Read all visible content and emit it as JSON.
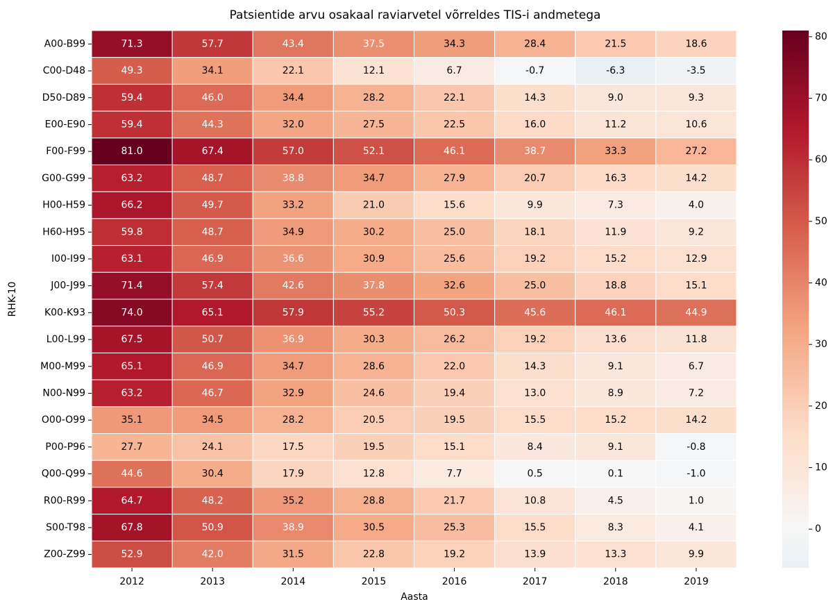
{
  "chart_data": {
    "type": "heatmap",
    "title": "Patsientide arvu osakaal raviarvetel võrreldes TIS-i andmetega",
    "x_label": "Aasta",
    "y_label": "RHK-10",
    "x_categories": [
      "2012",
      "2013",
      "2014",
      "2015",
      "2016",
      "2017",
      "2018",
      "2019"
    ],
    "y_categories": [
      "A00-B99",
      "C00-D48",
      "D50-D89",
      "E00-E90",
      "F00-F99",
      "G00-G99",
      "H00-H59",
      "H60-H95",
      "I00-I99",
      "J00-J99",
      "K00-K93",
      "L00-L99",
      "M00-M99",
      "N00-N99",
      "O00-O99",
      "P00-P96",
      "Q00-Q99",
      "R00-R99",
      "S00-T98",
      "Z00-Z99"
    ],
    "values": [
      [
        71.3,
        57.7,
        43.4,
        37.5,
        34.3,
        28.4,
        21.5,
        18.6
      ],
      [
        49.3,
        34.1,
        22.1,
        12.1,
        6.7,
        -0.7,
        -6.3,
        -3.5
      ],
      [
        59.4,
        46.0,
        34.4,
        28.2,
        22.1,
        14.3,
        9.0,
        9.3
      ],
      [
        59.4,
        44.3,
        32.0,
        27.5,
        22.5,
        16.0,
        11.2,
        10.6
      ],
      [
        81.0,
        67.4,
        57.0,
        52.1,
        46.1,
        38.7,
        33.3,
        27.2
      ],
      [
        63.2,
        48.7,
        38.8,
        34.7,
        27.9,
        20.7,
        16.3,
        14.2
      ],
      [
        66.2,
        49.7,
        33.2,
        21.0,
        15.6,
        9.9,
        7.3,
        4.0
      ],
      [
        59.8,
        48.7,
        34.9,
        30.2,
        25.0,
        18.1,
        11.9,
        9.2
      ],
      [
        63.1,
        46.9,
        36.6,
        30.9,
        25.6,
        19.2,
        15.2,
        12.9
      ],
      [
        71.4,
        57.4,
        42.6,
        37.8,
        32.6,
        25.0,
        18.8,
        15.1
      ],
      [
        74.0,
        65.1,
        57.9,
        55.2,
        50.3,
        45.6,
        46.1,
        44.9
      ],
      [
        67.5,
        50.7,
        36.9,
        30.3,
        26.2,
        19.2,
        13.6,
        11.8
      ],
      [
        65.1,
        46.9,
        34.7,
        28.6,
        22.0,
        14.3,
        9.1,
        6.7
      ],
      [
        63.2,
        46.7,
        32.9,
        24.6,
        19.4,
        13.0,
        8.9,
        7.2
      ],
      [
        35.1,
        34.5,
        28.2,
        20.5,
        19.5,
        15.5,
        15.2,
        14.2
      ],
      [
        27.7,
        24.1,
        17.5,
        19.5,
        15.1,
        8.4,
        9.1,
        -0.8
      ],
      [
        44.6,
        30.4,
        17.9,
        12.8,
        7.7,
        0.5,
        0.1,
        -1.0
      ],
      [
        64.7,
        48.2,
        35.2,
        28.8,
        21.7,
        10.8,
        4.5,
        1.0
      ],
      [
        67.8,
        50.9,
        38.9,
        30.5,
        25.3,
        15.5,
        8.3,
        4.1
      ],
      [
        52.9,
        42.0,
        31.5,
        22.8,
        19.2,
        13.9,
        13.3,
        9.9
      ]
    ],
    "value_labels": [
      [
        "71.3",
        "57.7",
        "43.4",
        "37.5",
        "34.3",
        "28.4",
        "21.5",
        "18.6"
      ],
      [
        "49.3",
        "34.1",
        "22.1",
        "12.1",
        "6.7",
        "-0.7",
        "-6.3",
        "-3.5"
      ],
      [
        "59.4",
        "46.0",
        "34.4",
        "28.2",
        "22.1",
        "14.3",
        "9.0",
        "9.3"
      ],
      [
        "59.4",
        "44.3",
        "32.0",
        "27.5",
        "22.5",
        "16.0",
        "11.2",
        "10.6"
      ],
      [
        "81.0",
        "67.4",
        "57.0",
        "52.1",
        "46.1",
        "38.7",
        "33.3",
        "27.2"
      ],
      [
        "63.2",
        "48.7",
        "38.8",
        "34.7",
        "27.9",
        "20.7",
        "16.3",
        "14.2"
      ],
      [
        "66.2",
        "49.7",
        "33.2",
        "21.0",
        "15.6",
        "9.9",
        "7.3",
        "4.0"
      ],
      [
        "59.8",
        "48.7",
        "34.9",
        "30.2",
        "25.0",
        "18.1",
        "11.9",
        "9.2"
      ],
      [
        "63.1",
        "46.9",
        "36.6",
        "30.9",
        "25.6",
        "19.2",
        "15.2",
        "12.9"
      ],
      [
        "71.4",
        "57.4",
        "42.6",
        "37.8",
        "32.6",
        "25.0",
        "18.8",
        "15.1"
      ],
      [
        "74.0",
        "65.1",
        "57.9",
        "55.2",
        "50.3",
        "45.6",
        "46.1",
        "44.9"
      ],
      [
        "67.5",
        "50.7",
        "36.9",
        "30.3",
        "26.2",
        "19.2",
        "13.6",
        "11.8"
      ],
      [
        "65.1",
        "46.9",
        "34.7",
        "28.6",
        "22.0",
        "14.3",
        "9.1",
        "6.7"
      ],
      [
        "63.2",
        "46.7",
        "32.9",
        "24.6",
        "19.4",
        "13.0",
        "8.9",
        "7.2"
      ],
      [
        "35.1",
        "34.5",
        "28.2",
        "20.5",
        "19.5",
        "15.5",
        "15.2",
        "14.2"
      ],
      [
        "27.7",
        "24.1",
        "17.5",
        "19.5",
        "15.1",
        "8.4",
        "9.1",
        "-0.8"
      ],
      [
        "44.6",
        "30.4",
        "17.9",
        "12.8",
        "7.7",
        "0.5",
        "0.1",
        "-1.0"
      ],
      [
        "64.7",
        "48.2",
        "35.2",
        "28.8",
        "21.7",
        "10.8",
        "4.5",
        "1.0"
      ],
      [
        "67.8",
        "50.9",
        "38.9",
        "30.5",
        "25.3",
        "15.5",
        "8.3",
        "4.1"
      ],
      [
        "52.9",
        "42.0",
        "31.5",
        "22.8",
        "19.2",
        "13.9",
        "13.3",
        "9.9"
      ]
    ],
    "colorbar": {
      "lim": [
        -6.3,
        81.0
      ],
      "center": 0,
      "ticks": [
        0,
        10,
        20,
        30,
        40,
        50,
        60,
        70,
        80
      ],
      "colormap": [
        "#053061",
        "#2166ac",
        "#4393c3",
        "#92c5de",
        "#d1e5f0",
        "#f7f7f7",
        "#fddbc7",
        "#f4a582",
        "#d6604d",
        "#b2182b",
        "#67001f"
      ]
    }
  }
}
